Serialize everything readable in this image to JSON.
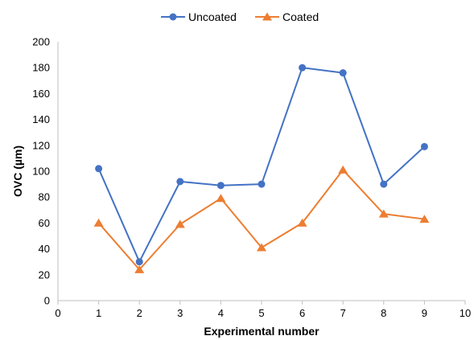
{
  "chart_data": {
    "type": "line",
    "xlabel": "Experimental number",
    "ylabel": "OVC (µm)",
    "xlim": [
      0,
      10
    ],
    "ylim": [
      0,
      200
    ],
    "x_ticks": [
      "0",
      "1",
      "2",
      "3",
      "4",
      "5",
      "6",
      "7",
      "8",
      "9",
      "10"
    ],
    "y_ticks": [
      "0",
      "20",
      "40",
      "60",
      "80",
      "100",
      "120",
      "140",
      "160",
      "180",
      "200"
    ],
    "grid": false,
    "legend_position": "top-center",
    "series": [
      {
        "name": "Uncoated",
        "marker": "circle",
        "color": "#4472C4",
        "x": [
          1,
          2,
          3,
          4,
          5,
          6,
          7,
          8,
          9
        ],
        "y": [
          102,
          30,
          92,
          89,
          90,
          180,
          176,
          90,
          119
        ]
      },
      {
        "name": "Coated",
        "marker": "triangle",
        "color": "#ED7D31",
        "x": [
          1,
          2,
          3,
          4,
          5,
          6,
          7,
          8,
          9
        ],
        "y": [
          60,
          24,
          59,
          79,
          41,
          60,
          101,
          67,
          63
        ]
      }
    ]
  }
}
